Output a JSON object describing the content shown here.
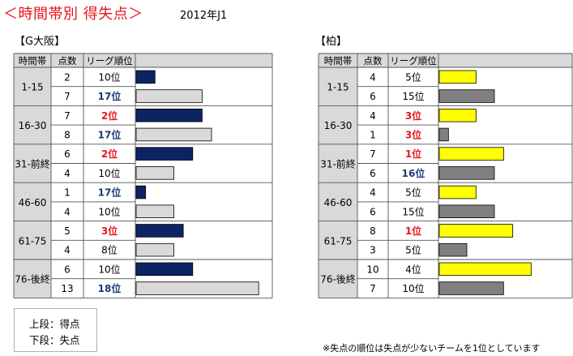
{
  "header": {
    "title": "＜時間帯別 得失点＞",
    "subtitle": "2012年J1"
  },
  "columns": {
    "period": "時間帯",
    "count": "点数",
    "rank": "リーグ順位"
  },
  "legend": {
    "upper": "上段：得点",
    "lower": "下段：失点"
  },
  "footnote": "※失点の順位は失点が少ないチームを1位としています",
  "colors": {
    "gamba_scored": "#0d2464",
    "gamba_conceded": "#d9d9d9",
    "kashiwa_scored": "#ffff00",
    "kashiwa_conceded": "#808080",
    "rank_top3": "#e8141e",
    "rank_bottom": "#1f3a7a",
    "header_bg": "#d9d9d9"
  },
  "chart_data": [
    {
      "type": "bar",
      "team": "【G大阪】",
      "categories": [
        "1-15",
        "16-30",
        "31-前終",
        "46-60",
        "61-75",
        "76-後終"
      ],
      "series": [
        {
          "values": [
            2,
            7,
            6,
            1,
            5,
            6
          ],
          "ranks": [
            "10位",
            "2位",
            "2位",
            "17位",
            "3位",
            "10位"
          ]
        },
        {
          "values": [
            7,
            8,
            4,
            4,
            4,
            13
          ],
          "ranks": [
            "17位",
            "17位",
            "10位",
            "10位",
            "8位",
            "18位"
          ]
        }
      ]
    },
    {
      "type": "bar",
      "team": "【柏】",
      "categories": [
        "1-15",
        "16-30",
        "31-前終",
        "46-60",
        "61-75",
        "76-後終"
      ],
      "series": [
        {
          "values": [
            4,
            4,
            7,
            4,
            8,
            10
          ],
          "ranks": [
            "5位",
            "3位",
            "1位",
            "5位",
            "1位",
            "4位"
          ]
        },
        {
          "values": [
            6,
            1,
            6,
            6,
            3,
            7
          ],
          "ranks": [
            "15位",
            "3位",
            "16位",
            "15位",
            "5位",
            "10位"
          ]
        }
      ]
    }
  ]
}
